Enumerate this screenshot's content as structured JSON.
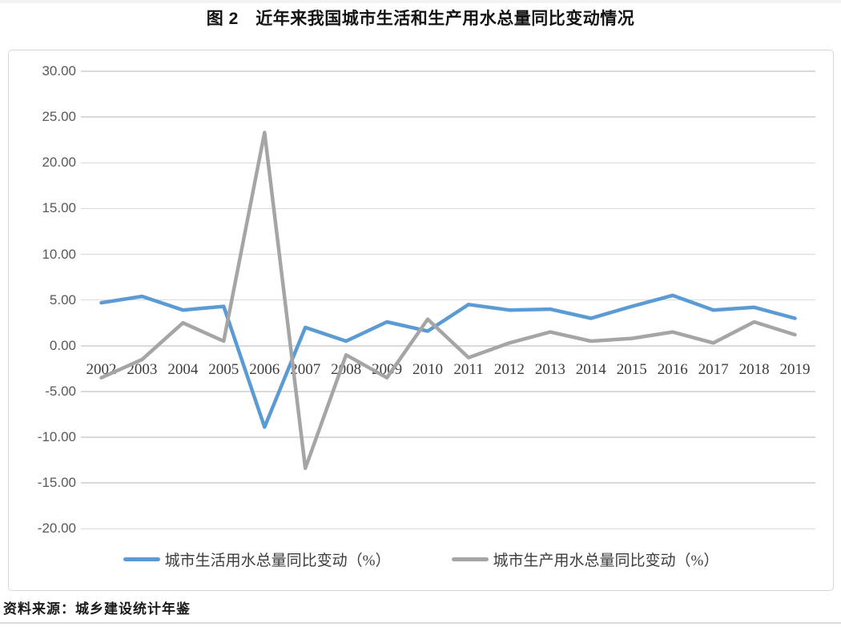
{
  "page": {
    "title": "图 2　近年来我国城市生活和生产用水总量同比变动情况",
    "source_note": "资料来源：城乡建设统计年鉴"
  },
  "colors": {
    "series_life": "#5B9BD5",
    "series_production": "#A5A5A5",
    "gridline": "#D9D9D9",
    "ytick_text": "#595959",
    "xtick_text": "#3D3D3D",
    "chart_border": "#D6D6D6"
  },
  "chart_data": {
    "type": "line",
    "title": "图 2　近年来我国城市生活和生产用水总量同比变动情况",
    "categories": [
      "2002",
      "2003",
      "2004",
      "2005",
      "2006",
      "2007",
      "2008",
      "2009",
      "2010",
      "2011",
      "2012",
      "2013",
      "2014",
      "2015",
      "2016",
      "2017",
      "2018",
      "2019"
    ],
    "series": [
      {
        "name": "城市生活用水总量同比变动（%）",
        "color": "#5B9BD5",
        "values": [
          4.7,
          5.4,
          3.9,
          4.3,
          -8.9,
          2.0,
          0.5,
          2.6,
          1.6,
          4.5,
          3.9,
          4.0,
          3.0,
          4.3,
          5.5,
          3.9,
          4.2,
          3.0
        ]
      },
      {
        "name": "城市生产用水总量同比变动（%）",
        "color": "#A5A5A5",
        "values": [
          -3.5,
          -1.5,
          2.5,
          0.5,
          23.3,
          -13.4,
          -1.0,
          -3.5,
          2.9,
          -1.3,
          0.3,
          1.5,
          0.5,
          0.8,
          1.5,
          0.3,
          2.6,
          1.2
        ]
      }
    ],
    "xlabel": "",
    "ylabel": "",
    "ylim": [
      -20,
      30
    ],
    "ytick_step": 5,
    "ytick_decimals": 2,
    "grid": true,
    "legend_position": "bottom"
  }
}
